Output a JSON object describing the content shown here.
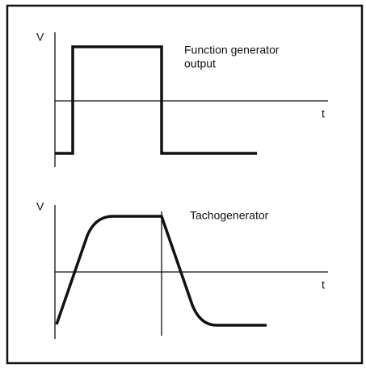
{
  "top_plot": {
    "y_axis_label": "V",
    "x_axis_label": "t",
    "label_lines": [
      "Function generator",
      "output"
    ]
  },
  "bottom_plot": {
    "y_axis_label": "V",
    "x_axis_label": "t",
    "label": "Tachogenerator"
  }
}
